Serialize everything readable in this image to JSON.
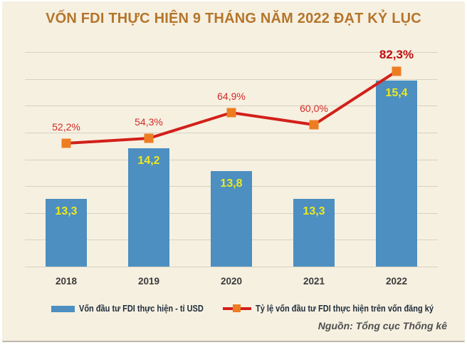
{
  "title": "VỐN FDI THỰC HIỆN 9 THÁNG NĂM 2022 ĐẠT KỶ LỤC",
  "source": "Nguồn: Tổng cục Thống kê",
  "legend": [
    {
      "label": "Vốn đầu tư FDI thực hiện - tỉ USD",
      "swatch": "bar"
    },
    {
      "label": "Tỷ lệ vốn đầu tư FDI thực hiện trên vốn đăng ký",
      "swatch": "line-with-square-marker"
    }
  ],
  "colors": {
    "background": "#f6f0e1",
    "bar": "#4c8fc0",
    "bar_label": "#ede821",
    "line": "#d2201a",
    "marker": "#ed7d23",
    "percent_label": "#d32a24",
    "percent_label_highlight": "#c00f0f",
    "title": "#b4752b",
    "grid": "#d6d1c2",
    "axis_text": "#3b3b3b",
    "legend_text": "#1e2c3a",
    "source_text": "#4f4f4f"
  },
  "chart_data": {
    "type": "bar+line combo",
    "title": "VỐN FDI THỰC HIỆN 9 THÁNG NĂM 2022 ĐẠT KỶ LỤC",
    "categories": [
      "2018",
      "2019",
      "2020",
      "2021",
      "2022"
    ],
    "series": [
      {
        "name": "Vốn đầu tư FDI thực hiện - tỉ USD",
        "type": "bar",
        "values": [
          13.3,
          14.2,
          13.8,
          13.3,
          15.4
        ],
        "labels": [
          "13,3",
          "14,2",
          "13,8",
          "13,3",
          "15,4"
        ],
        "unit": "tỉ USD"
      },
      {
        "name": "Tỷ lệ vốn đầu tư FDI thực hiện trên vốn đăng ký",
        "type": "line",
        "values": [
          52.2,
          54.3,
          64.9,
          60.0,
          82.3
        ],
        "labels": [
          "52,2%",
          "54,3%",
          "64,9%",
          "60,0%",
          "82,3%"
        ],
        "unit": "%"
      }
    ],
    "grid": true,
    "gridline_count": 9,
    "y_axis_labels_visible": false,
    "legend_position": "bottom",
    "highlight_last_line_label": true,
    "value_labels_position": {
      "bar": "inside-top",
      "line": "above-marker"
    }
  }
}
